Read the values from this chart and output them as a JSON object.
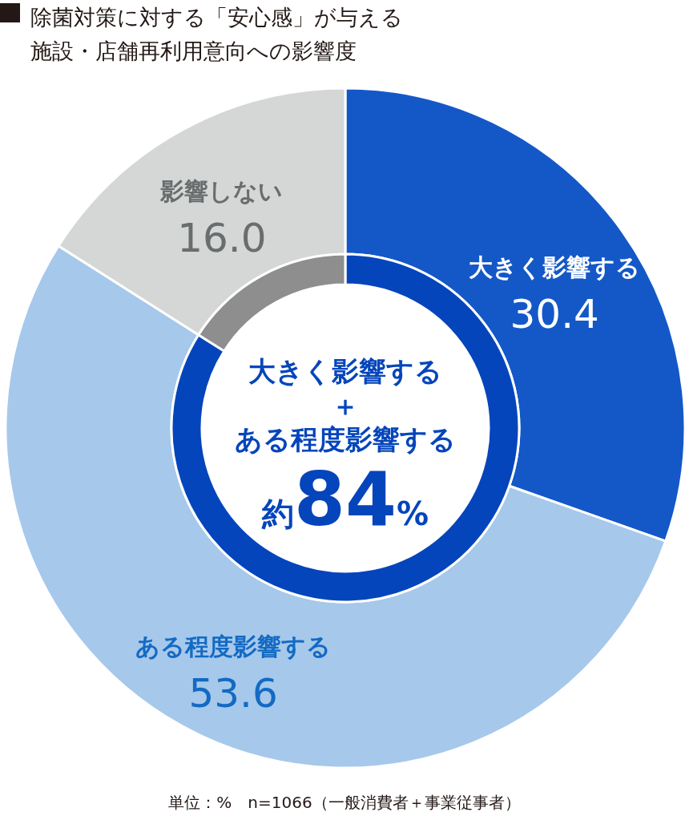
{
  "chart_data": [
    {
      "type": "donut",
      "title": "除菌対策に対する「安心感」が与える施設・店舗再利用意向への影響度",
      "categories": [
        "大きく影響する",
        "ある程度影響する",
        "影響しない"
      ],
      "values": [
        30.4,
        53.6,
        16.0
      ],
      "value_labels": [
        "30.4",
        "53.6",
        "16.0"
      ],
      "colors": [
        "#1458c8",
        "#a6c8eb",
        "#d5d6d6"
      ],
      "annotations": [
        "単位：%　n=1066（一般消費者＋事業従事者）"
      ]
    },
    {
      "type": "donut",
      "categories": [
        null,
        null
      ],
      "values": [
        84,
        16
      ],
      "colors": [
        "#0545bb",
        "#8e8e8e"
      ],
      "annotations": [
        "大きく影響する",
        "＋",
        "ある程度影響する",
        "約84%"
      ]
    }
  ]
}
